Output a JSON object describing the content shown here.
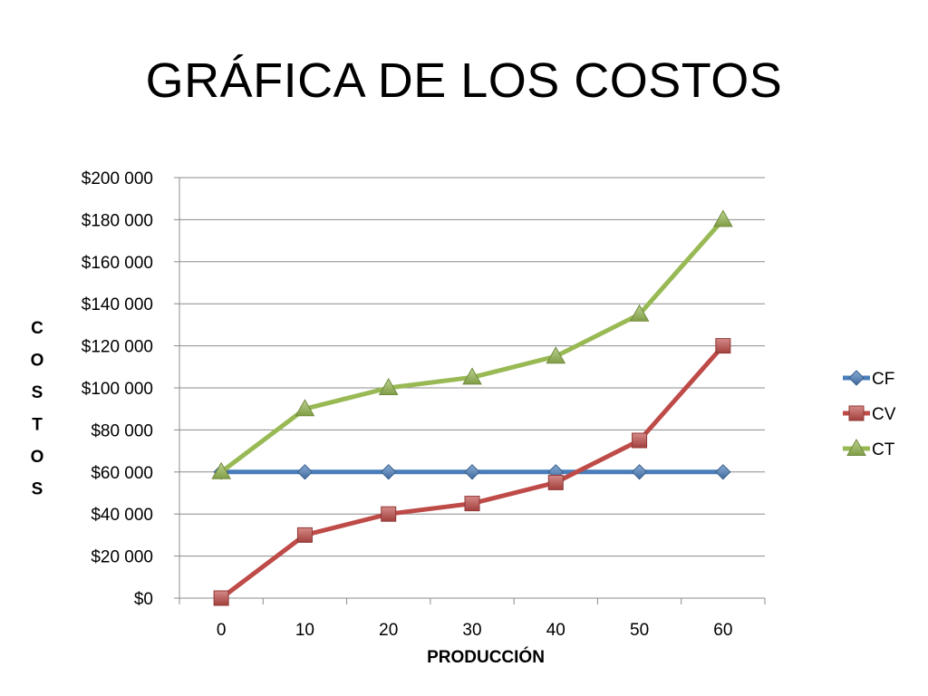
{
  "title": "GRÁFICA DE LOS COSTOS",
  "chart_data": {
    "type": "line",
    "title": "",
    "xlabel": "PRODUCCIÓN",
    "ylabel": "COSTOS",
    "ylabel_letters": [
      "C",
      "O",
      "S",
      "T",
      "O",
      "S"
    ],
    "categories": [
      "0",
      "10",
      "20",
      "30",
      "40",
      "50",
      "60"
    ],
    "ylim": [
      0,
      200000
    ],
    "y_ticks": [
      0,
      20000,
      40000,
      60000,
      80000,
      100000,
      120000,
      140000,
      160000,
      180000,
      200000
    ],
    "y_tick_labels": [
      "$0",
      "$20 000",
      "$40 000",
      "$60 000",
      "$80 000",
      "$100 000",
      "$120 000",
      "$140 000",
      "$160 000",
      "$180 000",
      "$200 000"
    ],
    "grid": true,
    "legend_position": "right",
    "series": [
      {
        "name": "CF",
        "values": [
          60000,
          60000,
          60000,
          60000,
          60000,
          60000,
          60000
        ],
        "color": "#4a7ebb",
        "marker": "diamond"
      },
      {
        "name": "CV",
        "values": [
          0,
          30000,
          40000,
          45000,
          55000,
          75000,
          120000
        ],
        "color": "#be4b48",
        "marker": "square"
      },
      {
        "name": "CT",
        "values": [
          60000,
          90000,
          100000,
          105000,
          115000,
          135000,
          180000
        ],
        "color": "#98b954",
        "marker": "triangle"
      }
    ]
  }
}
